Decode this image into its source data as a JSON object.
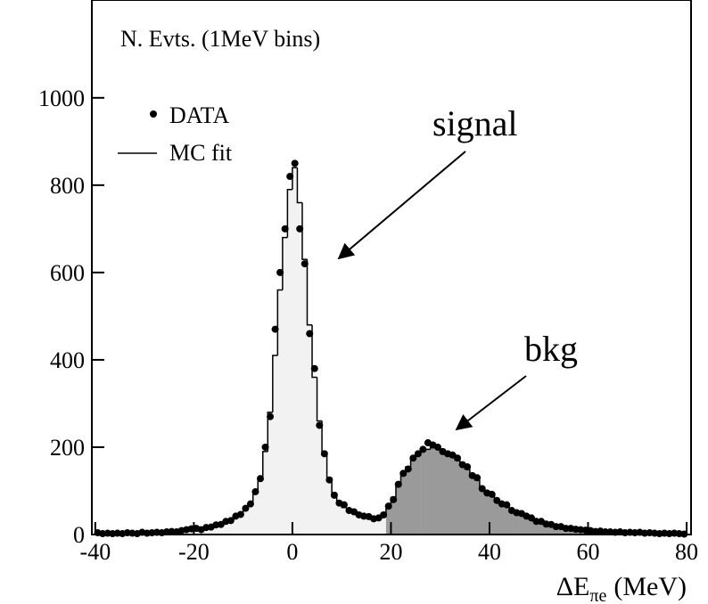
{
  "chart_data": {
    "type": "histogram",
    "ylabel": "N. Evts. (1MeV bins)",
    "xlabel": {
      "main": "ΔE",
      "sub": "πe",
      "unit": "(MeV)"
    },
    "bins": [
      -40,
      -39,
      -38,
      -37,
      -36,
      -35,
      -34,
      -33,
      -32,
      -31,
      -30,
      -29,
      -28,
      -27,
      -26,
      -25,
      -24,
      -23,
      -22,
      -21,
      -20,
      -19,
      -18,
      -17,
      -16,
      -15,
      -14,
      -13,
      -12,
      -11,
      -10,
      -9,
      -8,
      -7,
      -6,
      -5,
      -4,
      -3,
      -2,
      -1,
      0,
      1,
      2,
      3,
      4,
      5,
      6,
      7,
      8,
      9,
      10,
      11,
      12,
      13,
      14,
      15,
      16,
      17,
      18,
      19,
      20,
      21,
      22,
      23,
      24,
      25,
      26,
      27,
      28,
      29,
      30,
      31,
      32,
      33,
      34,
      35,
      36,
      37,
      38,
      39,
      40,
      41,
      42,
      43,
      44,
      45,
      46,
      47,
      48,
      49,
      50,
      51,
      52,
      53,
      54,
      55,
      56,
      57,
      58,
      59,
      60,
      61,
      62,
      63,
      64,
      65,
      66,
      67,
      68,
      69,
      70,
      71,
      72,
      73,
      74,
      75,
      76,
      77,
      78,
      79,
      80
    ],
    "series": [
      {
        "name": "DATA",
        "color": "#000000",
        "style": "points",
        "values": [
          4,
          2,
          3,
          2,
          3,
          2,
          4,
          3,
          2,
          5,
          3,
          4,
          5,
          4,
          6,
          7,
          6,
          9,
          11,
          13,
          14,
          11,
          16,
          17,
          22,
          23,
          30,
          32,
          42,
          46,
          60,
          70,
          98,
          128,
          200,
          270,
          470,
          600,
          700,
          820,
          850,
          700,
          620,
          460,
          380,
          250,
          185,
          125,
          90,
          72,
          68,
          55,
          52,
          45,
          42,
          41,
          36,
          38,
          45,
          65,
          80,
          115,
          140,
          150,
          175,
          185,
          195,
          210,
          205,
          200,
          190,
          185,
          182,
          175,
          160,
          155,
          135,
          130,
          105,
          95,
          92,
          78,
          70,
          68,
          55,
          50,
          48,
          42,
          38,
          30,
          30,
          24,
          23,
          18,
          18,
          14,
          14,
          12,
          11,
          10,
          9,
          7,
          8,
          6,
          6,
          5,
          6,
          4,
          5,
          4,
          5,
          3,
          4,
          3,
          2,
          3,
          2,
          3,
          2,
          1
        ]
      },
      {
        "name": "MC fit",
        "color": "#000000",
        "style": "step",
        "values": [
          3,
          3,
          2,
          3,
          2,
          3,
          3,
          2,
          3,
          4,
          4,
          3,
          4,
          5,
          5,
          6,
          7,
          8,
          10,
          12,
          13,
          12,
          15,
          18,
          20,
          24,
          28,
          33,
          40,
          48,
          58,
          72,
          95,
          130,
          190,
          280,
          410,
          560,
          680,
          790,
          840,
          760,
          630,
          480,
          360,
          260,
          190,
          130,
          95,
          75,
          62,
          55,
          50,
          47,
          44,
          40,
          38,
          36,
          40,
          60,
          85,
          110,
          135,
          155,
          170,
          180,
          190,
          195,
          200,
          200,
          195,
          190,
          180,
          170,
          165,
          150,
          140,
          125,
          110,
          100,
          90,
          80,
          72,
          65,
          58,
          52,
          46,
          40,
          36,
          32,
          28,
          25,
          22,
          20,
          17,
          15,
          13,
          11,
          10,
          9,
          8,
          8,
          7,
          7,
          6,
          6,
          5,
          5,
          5,
          4,
          4,
          4,
          3,
          3,
          3,
          3,
          2,
          2,
          2,
          2
        ]
      }
    ],
    "fill_regions": [
      {
        "label": "signal",
        "color": "#f2f2f2",
        "range": [
          -40,
          19
        ]
      },
      {
        "label": "bkg",
        "color": "#9a9a9a",
        "range": [
          19,
          80
        ]
      }
    ],
    "xlim": [
      -40.7,
      80.9
    ],
    "ylim": [
      0,
      1224
    ],
    "xticks": [
      -40,
      -20,
      0,
      20,
      40,
      60,
      80
    ],
    "yticks": [
      0,
      200,
      400,
      600,
      800,
      1000
    ]
  }
}
